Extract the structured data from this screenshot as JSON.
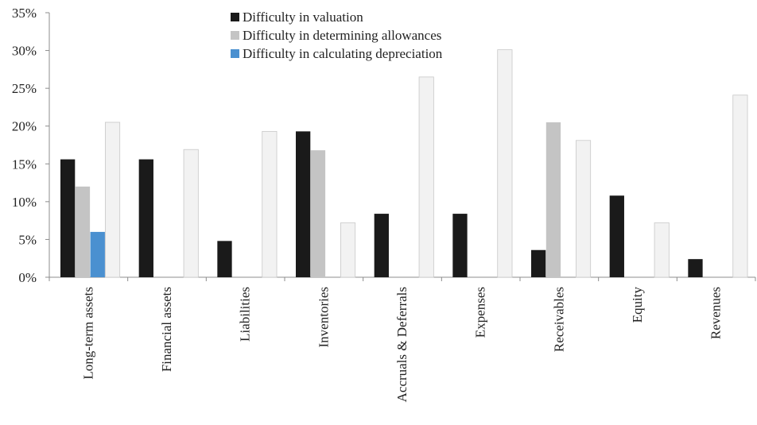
{
  "chart_data": {
    "type": "bar",
    "categories": [
      "Long-term assets",
      "Financial assets",
      "Liabilities",
      "Inventories",
      "Accruals & Deferrals",
      "Expenses",
      "Receivables",
      "Equity",
      "Revenues"
    ],
    "series": [
      {
        "name": "Difficulty in valuation",
        "color": "#1a1a1a",
        "values": [
          15.6,
          15.6,
          4.8,
          19.3,
          8.4,
          8.4,
          3.6,
          10.8,
          2.4
        ]
      },
      {
        "name": "Difficulty in determining allowances",
        "color": "#c4c4c4",
        "values": [
          12.0,
          0,
          0,
          16.8,
          0,
          0,
          20.5,
          0,
          0
        ]
      },
      {
        "name": "Difficulty in calculating depreciation",
        "color": "#4a90d0",
        "values": [
          6.0,
          0,
          0,
          0,
          0,
          0,
          0,
          0,
          0
        ]
      },
      {
        "name": "",
        "color": "#f2f2f2",
        "values": [
          20.5,
          16.9,
          19.3,
          7.2,
          26.5,
          30.1,
          18.1,
          7.2,
          24.1
        ]
      }
    ],
    "y_ticks": [
      "0%",
      "5%",
      "10%",
      "15%",
      "20%",
      "25%",
      "30%",
      "35%"
    ],
    "ylim": [
      0,
      35
    ],
    "legend_position": "top-center",
    "grid": false
  }
}
